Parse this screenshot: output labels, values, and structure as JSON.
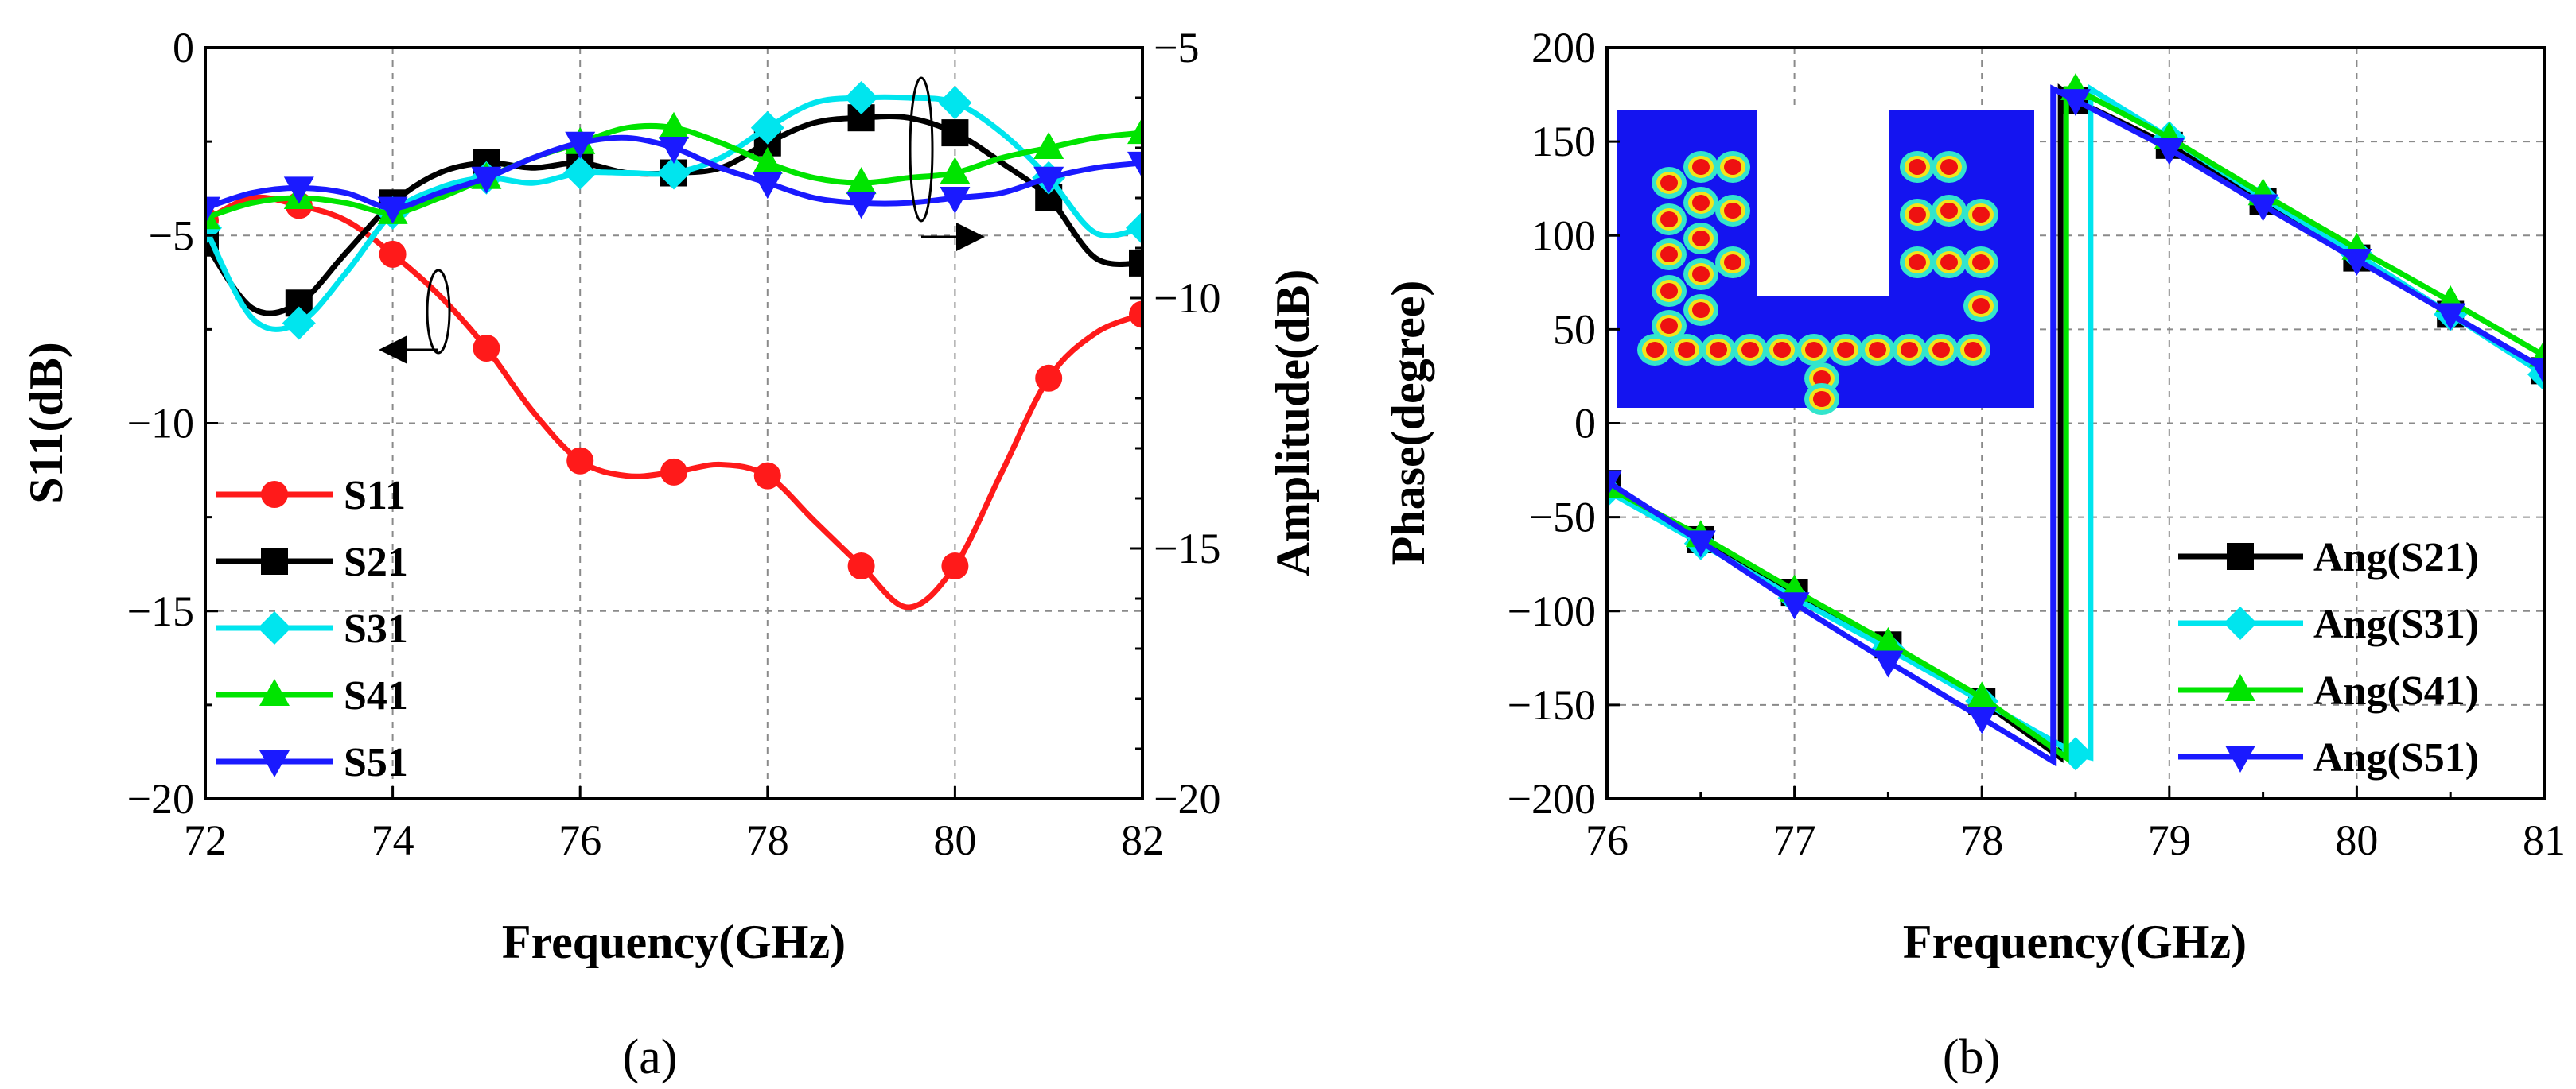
{
  "chart_data": [
    {
      "id": "a",
      "panel_label": "(a)",
      "type": "line",
      "xlabel": "Frequency(GHz)",
      "ylabel_left": "S11(dB)",
      "ylabel_right": "Amplitude(dB)",
      "xlim": [
        72,
        82
      ],
      "ylim_left": [
        -20,
        0
      ],
      "ylim_right": [
        -20,
        -5
      ],
      "xticks": [
        72,
        74,
        76,
        78,
        80,
        82
      ],
      "yticks_left": [
        0,
        -5,
        -10,
        -15,
        -20
      ],
      "yticks_right": [
        -5,
        -10,
        -15,
        -20
      ],
      "grid": true,
      "legend_position": "lower-left",
      "annotations": [
        "ellipse-arrow pointing left to S11 axis",
        "ellipse-arrow pointing right to Amplitude axis"
      ],
      "series": [
        {
          "name": "S11",
          "label": "S11",
          "axis": "left",
          "color": "#ff1a1a",
          "marker": "circle",
          "x": [
            72,
            72.5,
            73,
            73.5,
            74,
            74.5,
            75,
            75.5,
            76,
            76.5,
            77,
            77.5,
            78,
            78.5,
            79,
            79.5,
            80,
            80.5,
            81,
            81.5,
            82
          ],
          "y": [
            -4.6,
            -4.0,
            -4.2,
            -4.6,
            -5.5,
            -6.6,
            -8.0,
            -9.7,
            -11.0,
            -11.4,
            -11.3,
            -11.1,
            -11.4,
            -12.6,
            -13.8,
            -14.9,
            -13.8,
            -11.3,
            -8.8,
            -7.6,
            -7.1
          ]
        },
        {
          "name": "S21",
          "label": "S21",
          "axis": "right",
          "color": "#000000",
          "marker": "square",
          "x": [
            72,
            72.5,
            73,
            73.5,
            74,
            74.5,
            75,
            75.5,
            76,
            76.5,
            77,
            77.5,
            78,
            78.5,
            79,
            79.5,
            80,
            80.5,
            81,
            81.5,
            82
          ],
          "y": [
            -8.9,
            -10.2,
            -10.1,
            -9.1,
            -8.1,
            -7.5,
            -7.3,
            -7.4,
            -7.3,
            -7.5,
            -7.5,
            -7.4,
            -6.9,
            -6.5,
            -6.4,
            -6.4,
            -6.7,
            -7.3,
            -8.0,
            -9.2,
            -9.3
          ]
        },
        {
          "name": "S31",
          "label": "S31",
          "axis": "right",
          "color": "#00e5ee",
          "marker": "diamond",
          "x": [
            72,
            72.5,
            73,
            73.5,
            74,
            74.5,
            75,
            75.5,
            76,
            76.5,
            77,
            77.5,
            78,
            78.5,
            79,
            79.5,
            80,
            80.5,
            81,
            81.5,
            82
          ],
          "y": [
            -8.6,
            -10.4,
            -10.5,
            -9.5,
            -8.3,
            -7.8,
            -7.6,
            -7.7,
            -7.5,
            -7.5,
            -7.5,
            -7.2,
            -6.6,
            -6.1,
            -6.0,
            -6.0,
            -6.1,
            -6.7,
            -7.6,
            -8.7,
            -8.6
          ]
        },
        {
          "name": "S41",
          "label": "S41",
          "axis": "right",
          "color": "#00e400",
          "marker": "triangle-up",
          "x": [
            72,
            72.5,
            73,
            73.5,
            74,
            74.5,
            75,
            75.5,
            76,
            76.5,
            77,
            77.5,
            78,
            78.5,
            79,
            79.5,
            80,
            80.5,
            81,
            81.5,
            82
          ],
          "y": [
            -8.4,
            -8.1,
            -8.0,
            -8.1,
            -8.3,
            -8.0,
            -7.6,
            -7.2,
            -6.9,
            -6.6,
            -6.6,
            -6.9,
            -7.3,
            -7.6,
            -7.7,
            -7.6,
            -7.5,
            -7.2,
            -7.0,
            -6.8,
            -6.7
          ]
        },
        {
          "name": "S51",
          "label": "S51",
          "axis": "right",
          "color": "#1a1aff",
          "marker": "triangle-down",
          "x": [
            72,
            72.5,
            73,
            73.5,
            74,
            74.5,
            75,
            75.5,
            76,
            76.5,
            77,
            77.5,
            78,
            78.5,
            79,
            79.5,
            80,
            80.5,
            81,
            81.5,
            82
          ],
          "y": [
            -8.2,
            -7.9,
            -7.8,
            -7.9,
            -8.2,
            -7.9,
            -7.6,
            -7.2,
            -6.9,
            -6.8,
            -7.0,
            -7.4,
            -7.7,
            -8.0,
            -8.1,
            -8.1,
            -8.0,
            -7.9,
            -7.6,
            -7.4,
            -7.3
          ]
        }
      ]
    },
    {
      "id": "b",
      "panel_label": "(b)",
      "type": "line",
      "xlabel": "Frequency(GHz)",
      "ylabel": "Phase(degree)",
      "xlim": [
        76,
        81
      ],
      "ylim": [
        -200,
        200
      ],
      "xticks": [
        76,
        77,
        78,
        79,
        80,
        81
      ],
      "yticks": [
        200,
        150,
        100,
        50,
        0,
        -50,
        -100,
        -150,
        -200
      ],
      "grid": true,
      "legend_position": "lower-right",
      "inset": "field distribution of feed network (top-left)",
      "series": [
        {
          "name": "Ang(S21)",
          "label": "Ang(S21)",
          "color": "#000000",
          "marker": "square",
          "x": [
            76,
            76.5,
            77,
            77.5,
            78,
            78.42,
            78.42,
            78.5,
            79,
            79.5,
            80,
            80.5,
            81
          ],
          "y": [
            -32,
            -62,
            -90,
            -118,
            -148,
            -178,
            178,
            172,
            148,
            118,
            88,
            58,
            28
          ]
        },
        {
          "name": "Ang(S31)",
          "label": "Ang(S31)",
          "color": "#00e5ee",
          "marker": "diamond",
          "x": [
            76,
            76.5,
            77,
            77.5,
            78,
            78.5,
            78.58,
            78.58,
            79,
            79.5,
            80,
            80.5,
            81
          ],
          "y": [
            -36,
            -64,
            -93,
            -120,
            -148,
            -176,
            -178,
            178,
            152,
            120,
            90,
            58,
            26
          ]
        },
        {
          "name": "Ang(S41)",
          "label": "Ang(S41)",
          "color": "#00e400",
          "marker": "triangle-up",
          "x": [
            76,
            76.5,
            77,
            77.5,
            78,
            78.45,
            78.45,
            78.5,
            79,
            79.5,
            80,
            80.5,
            81
          ],
          "y": [
            -34,
            -60,
            -89,
            -117,
            -146,
            -178,
            178,
            178,
            152,
            122,
            93,
            65,
            36
          ]
        },
        {
          "name": "Ang(S51)",
          "label": "Ang(S51)",
          "color": "#1a1aff",
          "marker": "triangle-down",
          "x": [
            76,
            76.5,
            77,
            77.5,
            78,
            78.38,
            78.38,
            78.5,
            79,
            79.5,
            80,
            80.5,
            81
          ],
          "y": [
            -31,
            -63,
            -96,
            -127,
            -157,
            -180,
            178,
            172,
            146,
            116,
            87,
            58,
            29
          ]
        }
      ]
    }
  ]
}
